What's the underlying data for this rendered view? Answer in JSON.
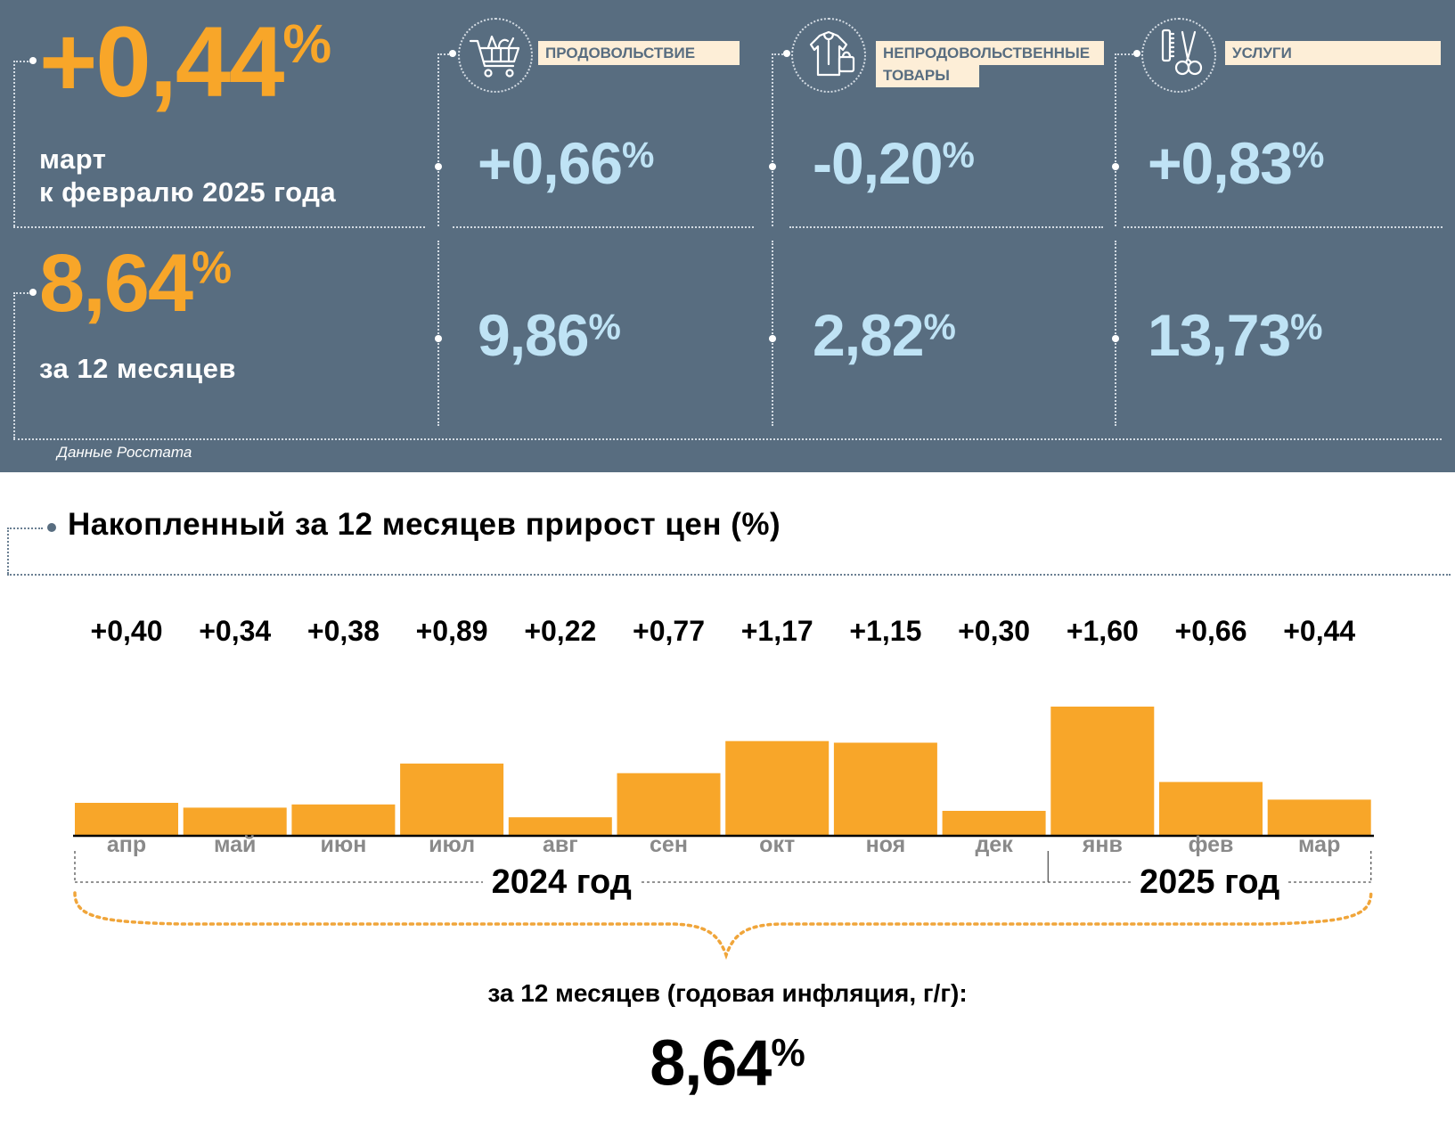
{
  "monthly": {
    "value": "+0,44",
    "unit": "%",
    "caption_line1": "март",
    "caption_line2": "к февралю 2025 года"
  },
  "annual": {
    "value": "8,64",
    "unit": "%",
    "caption": "за 12 месяцев"
  },
  "categories": [
    {
      "label_line1": "ПРОДОВОЛЬСТВИЕ",
      "label_line2": "",
      "icon": "shopping-cart-icon",
      "monthly": "+0,66",
      "annual": "9,86",
      "unit": "%"
    },
    {
      "label_line1": "НЕПРОДОВОЛЬСТВЕННЫЕ",
      "label_line2": "ТОВАРЫ",
      "icon": "clothes-bag-icon",
      "monthly": "-0,20",
      "annual": "2,82",
      "unit": "%"
    },
    {
      "label_line1": "УСЛУГИ",
      "label_line2": "",
      "icon": "scissors-comb-icon",
      "monthly": "+0,83",
      "annual": "13,73",
      "unit": "%"
    }
  ],
  "source": "Данные Росстата",
  "section_title": "Накопленный за 12 месяцев прирост цен (%)",
  "chart_data": {
    "type": "bar",
    "title": "Накопленный за 12 месяцев прирост цен (%)",
    "categories": [
      "апр",
      "май",
      "июн",
      "июл",
      "авг",
      "сен",
      "окт",
      "ноя",
      "дек",
      "янв",
      "фев",
      "мар"
    ],
    "values": [
      0.4,
      0.34,
      0.38,
      0.89,
      0.22,
      0.77,
      1.17,
      1.15,
      0.3,
      1.6,
      0.66,
      0.44
    ],
    "value_labels": [
      "+0,40",
      "+0,34",
      "+0,38",
      "+0,89",
      "+0,22",
      "+0,77",
      "+1,17",
      "+1,15",
      "+0,30",
      "+1,60",
      "+0,66",
      "+0,44"
    ],
    "year_groups": [
      {
        "label": "2024 год",
        "months": 9
      },
      {
        "label": "2025 год",
        "months": 3
      }
    ],
    "ylim": [
      0,
      1.6
    ],
    "grid": false,
    "bar_color": "#f8a629"
  },
  "summary_caption": "за 12 месяцев (годовая инфляция, г/г):",
  "summary_value": "8,64",
  "summary_unit": "%",
  "colors": {
    "panel_bg": "#586d80",
    "accent_orange": "#f8a629",
    "light_blue": "#bfe3f5",
    "label_bg": "#fdeed7",
    "month_gray": "#8a8a8a"
  }
}
